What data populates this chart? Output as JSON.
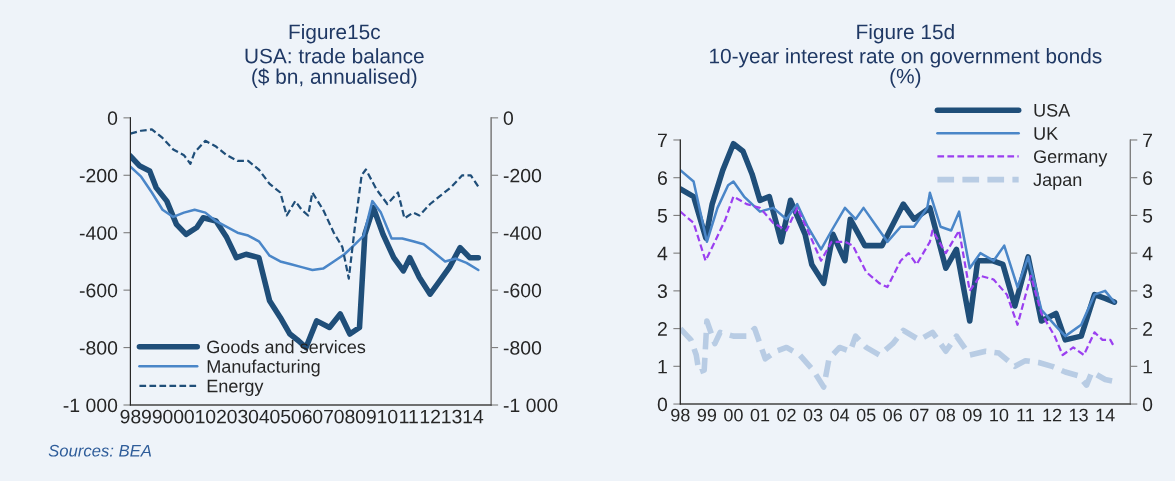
{
  "chart_data": [
    {
      "type": "line",
      "title": "Figure15c",
      "subtitle": "USA: trade balance\n($ bn, annualised)",
      "annotations": [
        "Sources: BEA"
      ],
      "xlim": [
        1998,
        2014.85
      ],
      "xticks": [
        {
          "value": 1998,
          "label": "98"
        },
        {
          "value": 1999,
          "label": "99"
        },
        {
          "value": 2000,
          "label": "00"
        },
        {
          "value": 2001,
          "label": "01"
        },
        {
          "value": 2002,
          "label": "02"
        },
        {
          "value": 2003,
          "label": "03"
        },
        {
          "value": 2004,
          "label": "04"
        },
        {
          "value": 2005,
          "label": "05"
        },
        {
          "value": 2006,
          "label": "06"
        },
        {
          "value": 2007,
          "label": "07"
        },
        {
          "value": 2008,
          "label": "08"
        },
        {
          "value": 2009,
          "label": "09"
        },
        {
          "value": 2010,
          "label": "10"
        },
        {
          "value": 2011,
          "label": "11"
        },
        {
          "value": 2012,
          "label": "12"
        },
        {
          "value": 2013,
          "label": "13"
        },
        {
          "value": 2014,
          "label": "14"
        }
      ],
      "ylim": [
        -1000,
        0
      ],
      "yticks": [
        {
          "value": -1000,
          "label": "-1 000"
        },
        -800,
        -600,
        -400,
        -200,
        0
      ],
      "y2lim": [
        -1000,
        0
      ],
      "y2ticks": [
        {
          "value": -1000,
          "label": "-1 000"
        },
        -800,
        -600,
        -400,
        -200,
        0
      ],
      "grid": false,
      "legend": "bottom left",
      "series": [
        {
          "name": "Goods and services",
          "color": "#1f4e79",
          "line_style": "solid",
          "x": [
            1998.0,
            1998.44,
            1998.9,
            1999.2,
            1999.7,
            2000.15,
            2000.6,
            2001.1,
            2001.4,
            2002.0,
            2002.5,
            2002.95,
            2003.4,
            2004.0,
            2004.5,
            2005.0,
            2005.45,
            2005.85,
            2006.2,
            2006.7,
            2007.3,
            2007.8,
            2008.25,
            2008.7,
            2008.95,
            2009.35,
            2009.8,
            2010.3,
            2010.75,
            2011.05,
            2011.5,
            2012.0,
            2012.45,
            2012.9,
            2013.4,
            2013.85,
            2014.25
          ],
          "values": [
            -133,
            -168,
            -185,
            -243,
            -290,
            -371,
            -406,
            -382,
            -348,
            -359,
            -417,
            -487,
            -475,
            -487,
            -637,
            -695,
            -753,
            -776,
            -800,
            -707,
            -730,
            -683,
            -753,
            -730,
            -406,
            -313,
            -406,
            -487,
            -533,
            -487,
            -556,
            -614,
            -568,
            -521,
            -452,
            -487,
            -487
          ]
        },
        {
          "name": "Manufacturing",
          "color": "#4a86c8",
          "line_style": "solid",
          "x": [
            1998.0,
            1998.5,
            1999.0,
            1999.5,
            2000.0,
            2000.5,
            2001.0,
            2001.5,
            2002.0,
            2002.5,
            2003.0,
            2003.5,
            2004.0,
            2004.5,
            2005.0,
            2005.5,
            2006.0,
            2006.5,
            2007.0,
            2007.5,
            2008.0,
            2008.5,
            2008.9,
            2009.3,
            2009.7,
            2010.2,
            2010.7,
            2011.2,
            2011.7,
            2012.2,
            2012.7,
            2013.2,
            2013.7,
            2014.25
          ],
          "values": [
            -170,
            -205,
            -260,
            -320,
            -345,
            -330,
            -320,
            -330,
            -360,
            -380,
            -400,
            -410,
            -430,
            -480,
            -500,
            -510,
            -520,
            -530,
            -525,
            -500,
            -475,
            -440,
            -410,
            -290,
            -330,
            -420,
            -420,
            -430,
            -440,
            -470,
            -500,
            -490,
            -505,
            -530
          ]
        },
        {
          "name": "Energy",
          "color": "#1f4e79",
          "line_style": "dashed",
          "x": [
            1998.0,
            1998.5,
            1999.0,
            1999.5,
            2000.0,
            2000.5,
            2000.8,
            2001.0,
            2001.5,
            2002.0,
            2002.5,
            2003.0,
            2003.5,
            2004.0,
            2004.5,
            2005.0,
            2005.3,
            2005.7,
            2006.0,
            2006.3,
            2006.5,
            2007.0,
            2007.5,
            2007.9,
            2008.2,
            2008.5,
            2008.8,
            2009.0,
            2009.5,
            2010.0,
            2010.5,
            2010.8,
            2011.2,
            2011.5,
            2012.0,
            2012.5,
            2013.0,
            2013.5,
            2013.9,
            2014.25
          ],
          "values": [
            -55,
            -45,
            -40,
            -70,
            -110,
            -130,
            -160,
            -120,
            -80,
            -100,
            -130,
            -150,
            -150,
            -180,
            -230,
            -260,
            -340,
            -290,
            -320,
            -340,
            -260,
            -320,
            -400,
            -450,
            -560,
            -370,
            -200,
            -180,
            -250,
            -300,
            -260,
            -350,
            -330,
            -340,
            -300,
            -270,
            -240,
            -200,
            -200,
            -240
          ]
        }
      ]
    },
    {
      "type": "line",
      "title": "Figure 15d",
      "subtitle": "10-year interest rate on government bonds\n(%)",
      "xlim": [
        1998,
        2014.95
      ],
      "xticks": [
        {
          "value": 1998,
          "label": "98"
        },
        {
          "value": 1999,
          "label": "99"
        },
        {
          "value": 2000,
          "label": "00"
        },
        {
          "value": 2001,
          "label": "01"
        },
        {
          "value": 2002,
          "label": "02"
        },
        {
          "value": 2003,
          "label": "03"
        },
        {
          "value": 2004,
          "label": "04"
        },
        {
          "value": 2005,
          "label": "05"
        },
        {
          "value": 2006,
          "label": "06"
        },
        {
          "value": 2007,
          "label": "07"
        },
        {
          "value": 2008,
          "label": "08"
        },
        {
          "value": 2009,
          "label": "09"
        },
        {
          "value": 2010,
          "label": "10"
        },
        {
          "value": 2011,
          "label": "11"
        },
        {
          "value": 2012,
          "label": "12"
        },
        {
          "value": 2013,
          "label": "13"
        },
        {
          "value": 2014,
          "label": "14"
        }
      ],
      "ylim": [
        0,
        7
      ],
      "yticks": [
        0,
        1,
        2,
        3,
        4,
        5,
        6,
        7
      ],
      "y2lim": [
        0,
        7
      ],
      "y2ticks": [
        0,
        1,
        2,
        3,
        4,
        5,
        6,
        7
      ],
      "grid": false,
      "legend": "top right",
      "series": [
        {
          "name": "USA",
          "color": "#1f4e79",
          "line_style": "solid",
          "x": [
            1998.0,
            1998.5,
            1998.96,
            1999.2,
            1999.6,
            2000.0,
            2000.36,
            2000.7,
            2001.0,
            2001.35,
            2001.8,
            2002.15,
            2002.7,
            2002.95,
            2003.4,
            2003.75,
            2004.2,
            2004.4,
            2004.95,
            2005.6,
            2006.4,
            2006.8,
            2007.4,
            2008.0,
            2008.4,
            2008.9,
            2009.2,
            2009.75,
            2010.15,
            2010.6,
            2011.1,
            2011.6,
            2012.15,
            2012.5,
            2013.1,
            2013.6,
            2014.0,
            2014.35
          ],
          "values": [
            5.7,
            5.5,
            4.4,
            5.3,
            6.2,
            6.9,
            6.7,
            6.1,
            5.4,
            5.5,
            4.3,
            5.4,
            4.5,
            3.7,
            3.2,
            4.5,
            3.8,
            4.9,
            4.2,
            4.2,
            5.3,
            4.9,
            5.2,
            3.6,
            4.1,
            2.2,
            3.8,
            3.8,
            3.7,
            2.6,
            3.9,
            2.2,
            2.4,
            1.7,
            1.8,
            2.9,
            2.8,
            2.7
          ]
        },
        {
          "name": "UK",
          "color": "#4a86c8",
          "line_style": "solid",
          "x": [
            1998.0,
            1998.5,
            1999.0,
            1999.4,
            1999.8,
            2000.0,
            2000.4,
            2001.0,
            2001.5,
            2002.0,
            2002.4,
            2002.8,
            2003.3,
            2003.7,
            2004.2,
            2004.6,
            2004.9,
            2005.4,
            2005.8,
            2006.3,
            2006.8,
            2007.3,
            2007.4,
            2007.8,
            2008.2,
            2008.5,
            2008.9,
            2009.3,
            2009.8,
            2010.2,
            2010.7,
            2011.1,
            2011.6,
            2012.1,
            2012.5,
            2013.1,
            2013.6,
            2014.0,
            2014.35
          ],
          "values": [
            6.2,
            5.9,
            4.3,
            5.2,
            5.8,
            5.9,
            5.5,
            5.1,
            5.2,
            4.9,
            5.3,
            4.7,
            4.1,
            4.6,
            5.2,
            4.9,
            5.2,
            4.7,
            4.3,
            4.7,
            4.7,
            5.2,
            5.6,
            4.7,
            4.6,
            5.1,
            3.6,
            4.0,
            3.8,
            4.2,
            3.1,
            3.9,
            2.5,
            2.1,
            1.8,
            2.1,
            2.9,
            3.0,
            2.7
          ]
        },
        {
          "name": "Germany",
          "color": "#9b3ff0",
          "line_style": "dashed",
          "x": [
            1998.0,
            1998.5,
            1998.95,
            1999.3,
            1999.7,
            2000.0,
            2000.5,
            2001.0,
            2001.5,
            2002.0,
            2002.4,
            2002.8,
            2003.3,
            2003.7,
            2004.2,
            2004.5,
            2005.0,
            2005.5,
            2005.8,
            2006.3,
            2006.6,
            2006.9,
            2007.4,
            2007.5,
            2008.0,
            2008.5,
            2008.9,
            2009.3,
            2009.8,
            2010.3,
            2010.7,
            2011.2,
            2011.6,
            2012.1,
            2012.4,
            2012.8,
            2013.2,
            2013.6,
            2013.9,
            2014.2,
            2014.35
          ],
          "values": [
            5.1,
            4.8,
            3.8,
            4.3,
            4.9,
            5.5,
            5.3,
            5.2,
            4.8,
            4.6,
            5.2,
            4.6,
            3.8,
            4.3,
            4.3,
            4.2,
            3.5,
            3.2,
            3.1,
            3.8,
            4.0,
            3.7,
            4.3,
            4.6,
            4.0,
            4.6,
            3.0,
            3.4,
            3.3,
            2.9,
            2.1,
            3.4,
            2.4,
            1.8,
            1.3,
            1.5,
            1.3,
            1.9,
            1.7,
            1.7,
            1.5
          ]
        },
        {
          "name": "Japan",
          "color": "#b8cce4",
          "line_style": "dashed",
          "x": [
            1998.0,
            1998.4,
            1998.6,
            1998.7,
            1998.9,
            1999.0,
            1999.3,
            1999.5,
            2000.0,
            2000.5,
            2000.8,
            2001.2,
            2001.6,
            2002.0,
            2002.5,
            2003.0,
            2003.4,
            2003.6,
            2004.0,
            2004.4,
            2004.6,
            2005.0,
            2005.5,
            2006.0,
            2006.4,
            2007.0,
            2007.5,
            2008.0,
            2008.4,
            2008.9,
            2009.5,
            2010.0,
            2010.6,
            2011.0,
            2011.5,
            2012.0,
            2012.5,
            2013.0,
            2013.3,
            2013.5,
            2014.0,
            2014.35
          ],
          "values": [
            2.0,
            1.7,
            1.3,
            0.85,
            0.9,
            2.2,
            1.6,
            1.9,
            1.8,
            1.8,
            2.0,
            1.2,
            1.4,
            1.5,
            1.3,
            0.9,
            0.45,
            1.2,
            1.5,
            1.4,
            1.8,
            1.5,
            1.3,
            1.6,
            1.95,
            1.7,
            1.9,
            1.4,
            1.8,
            1.3,
            1.4,
            1.35,
            1.0,
            1.15,
            1.1,
            1.0,
            0.85,
            0.75,
            0.5,
            0.85,
            0.65,
            0.6
          ]
        }
      ]
    }
  ]
}
